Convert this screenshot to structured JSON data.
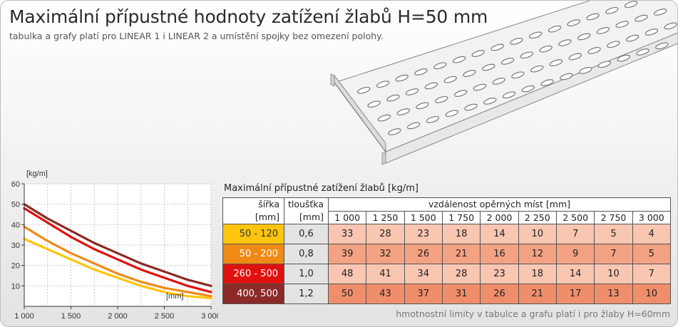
{
  "title": "Maximální přípustné hodnoty zatížení žlabů H=50 mm",
  "subtitle": "tabulka a grafy platí pro LINEAR 1 i LINEAR 2 a umístění spojky bez omezení polohy.",
  "table": {
    "caption": "Maximální přípustné zatížení žlabů [kg/m]",
    "col_width_label": "šířka",
    "col_width_unit": "[mm]",
    "col_thickness_label": "tloušťka",
    "col_thickness_unit": "[mm]",
    "span_label": "vzdálenost opěrných míst [mm]",
    "spans": [
      "1 000",
      "1 250",
      "1 500",
      "1 750",
      "2 000",
      "2 250",
      "2 500",
      "2 750",
      "3 000"
    ],
    "rows": [
      {
        "width": "50 - 120",
        "thickness": "0,6",
        "values": [
          "33",
          "28",
          "23",
          "18",
          "14",
          "10",
          "7",
          "5",
          "4"
        ]
      },
      {
        "width": "50 - 200",
        "thickness": "0,8",
        "values": [
          "39",
          "32",
          "26",
          "21",
          "16",
          "12",
          "9",
          "7",
          "5"
        ]
      },
      {
        "width": "260 - 500",
        "thickness": "1,0",
        "values": [
          "48",
          "41",
          "34",
          "28",
          "23",
          "18",
          "14",
          "10",
          "7"
        ]
      },
      {
        "width": "400, 500",
        "thickness": "1,2",
        "values": [
          "50",
          "43",
          "37",
          "31",
          "26",
          "21",
          "17",
          "13",
          "10"
        ]
      }
    ]
  },
  "footnote": "hmotnostní limity v tabulce a grafu platí i pro žlaby H=60mm",
  "chart_data": {
    "type": "line",
    "ylabel": "[kg/m]",
    "xlabel": "[mm]",
    "x": [
      1000,
      1250,
      1500,
      1750,
      2000,
      2250,
      2500,
      2750,
      3000
    ],
    "x_ticks": [
      "1 000",
      "1 500",
      "2 000",
      "2 500",
      "3 000"
    ],
    "x_tick_values": [
      1000,
      1500,
      2000,
      2500,
      3000
    ],
    "y_ticks": [
      "10",
      "20",
      "30",
      "40",
      "50",
      "60"
    ],
    "y_tick_values": [
      10,
      20,
      30,
      40,
      50,
      60
    ],
    "xlim": [
      1000,
      3000
    ],
    "ylim": [
      0,
      60
    ],
    "grid": true,
    "series": [
      {
        "values": [
          33,
          28,
          23,
          18,
          14,
          10,
          7,
          5,
          4
        ],
        "color": "#ffc40d"
      },
      {
        "values": [
          39,
          32,
          26,
          21,
          16,
          12,
          9,
          7,
          5
        ],
        "color": "#ef8a14"
      },
      {
        "values": [
          48,
          41,
          34,
          28,
          23,
          18,
          14,
          10,
          7
        ],
        "color": "#e0120f"
      },
      {
        "values": [
          50,
          43,
          37,
          31,
          26,
          21,
          17,
          13,
          10
        ],
        "color": "#8b2a26"
      }
    ]
  }
}
